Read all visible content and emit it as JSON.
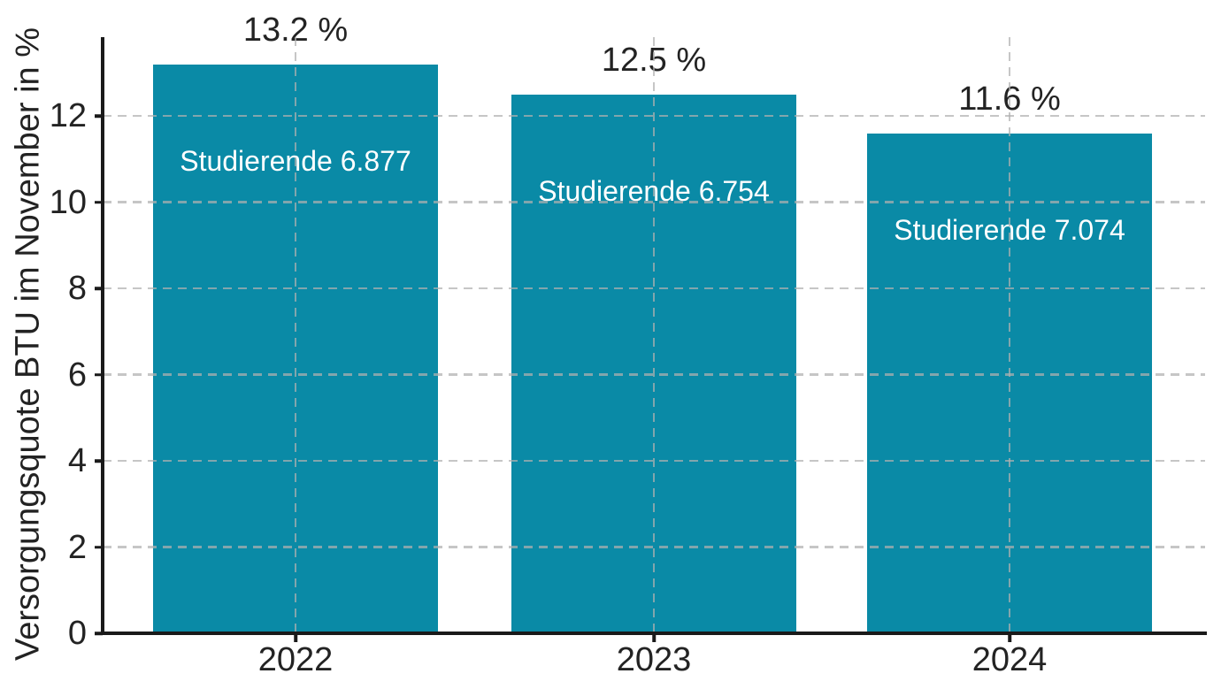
{
  "chart_data": {
    "type": "bar",
    "title": "",
    "xlabel": "",
    "ylabel": "Versorgungsquote BTU im November in %",
    "categories": [
      "2022",
      "2023",
      "2024"
    ],
    "values": [
      13.2,
      12.5,
      11.6
    ],
    "value_labels": [
      "13.2 %",
      "12.5 %",
      "11.6 %"
    ],
    "bar_inner_labels": [
      "Studierende 6.877",
      "Studierende 6.754",
      "Studierende 7.074"
    ],
    "studierende_counts": [
      6877,
      6754,
      7074
    ],
    "ylim": [
      0,
      13.83
    ],
    "yticks": [
      0,
      2,
      4,
      6,
      8,
      10,
      12
    ],
    "grid": true,
    "grid_style": "dashed",
    "legend": null,
    "colors": {
      "bar": "#0a8aa6",
      "grid": "rgba(176,176,176,0.72)",
      "axis": "#1a1a1a",
      "text": "#232323",
      "inner_label_text": "#ffffff",
      "background": "#ffffff"
    }
  }
}
